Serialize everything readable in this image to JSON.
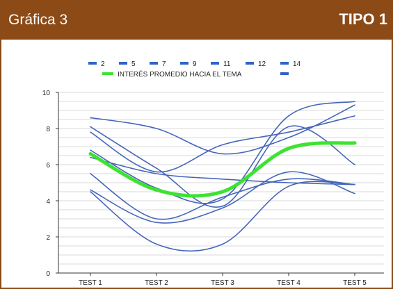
{
  "header": {
    "title": "Gráfica 3",
    "type_label": "TIPO 1"
  },
  "colors": {
    "header_bg": "#8B4A16",
    "series_line": "#4566BA",
    "average_line": "#3EE231",
    "legend_marker": "#2E63C7"
  },
  "chart_data": {
    "type": "line",
    "categories": [
      "TEST 1",
      "TEST 2",
      "TEST 3",
      "TEST 4",
      "TEST 5"
    ],
    "ylim": [
      0,
      10
    ],
    "yticks": [
      0,
      2,
      4,
      6,
      8,
      10
    ],
    "grid": true,
    "legend_position": "top",
    "series": [
      {
        "name": "2",
        "values": [
          8.6,
          8.0,
          6.6,
          7.5,
          9.3
        ]
      },
      {
        "name": "5",
        "values": [
          8.1,
          5.8,
          3.7,
          8.1,
          6.0
        ]
      },
      {
        "name": "7",
        "values": [
          7.8,
          5.6,
          7.1,
          7.8,
          8.7
        ]
      },
      {
        "name": "9",
        "values": [
          6.8,
          4.7,
          4.1,
          8.7,
          9.5
        ]
      },
      {
        "name": "11",
        "values": [
          6.4,
          5.5,
          5.2,
          5.0,
          4.9
        ]
      },
      {
        "name": "12",
        "values": [
          5.5,
          3.0,
          4.2,
          5.2,
          4.9
        ]
      },
      {
        "name": "14",
        "values": [
          4.6,
          2.8,
          3.6,
          5.6,
          4.4
        ]
      },
      {
        "name": "",
        "values": [
          4.5,
          1.6,
          1.6,
          4.8,
          4.9
        ]
      },
      {
        "name": "INTERÉS PROMEDIO  HACIA EL TEMA",
        "values": [
          6.6,
          4.6,
          4.5,
          6.9,
          7.2
        ],
        "highlight": true
      }
    ],
    "legend_extra": [
      ""
    ]
  }
}
